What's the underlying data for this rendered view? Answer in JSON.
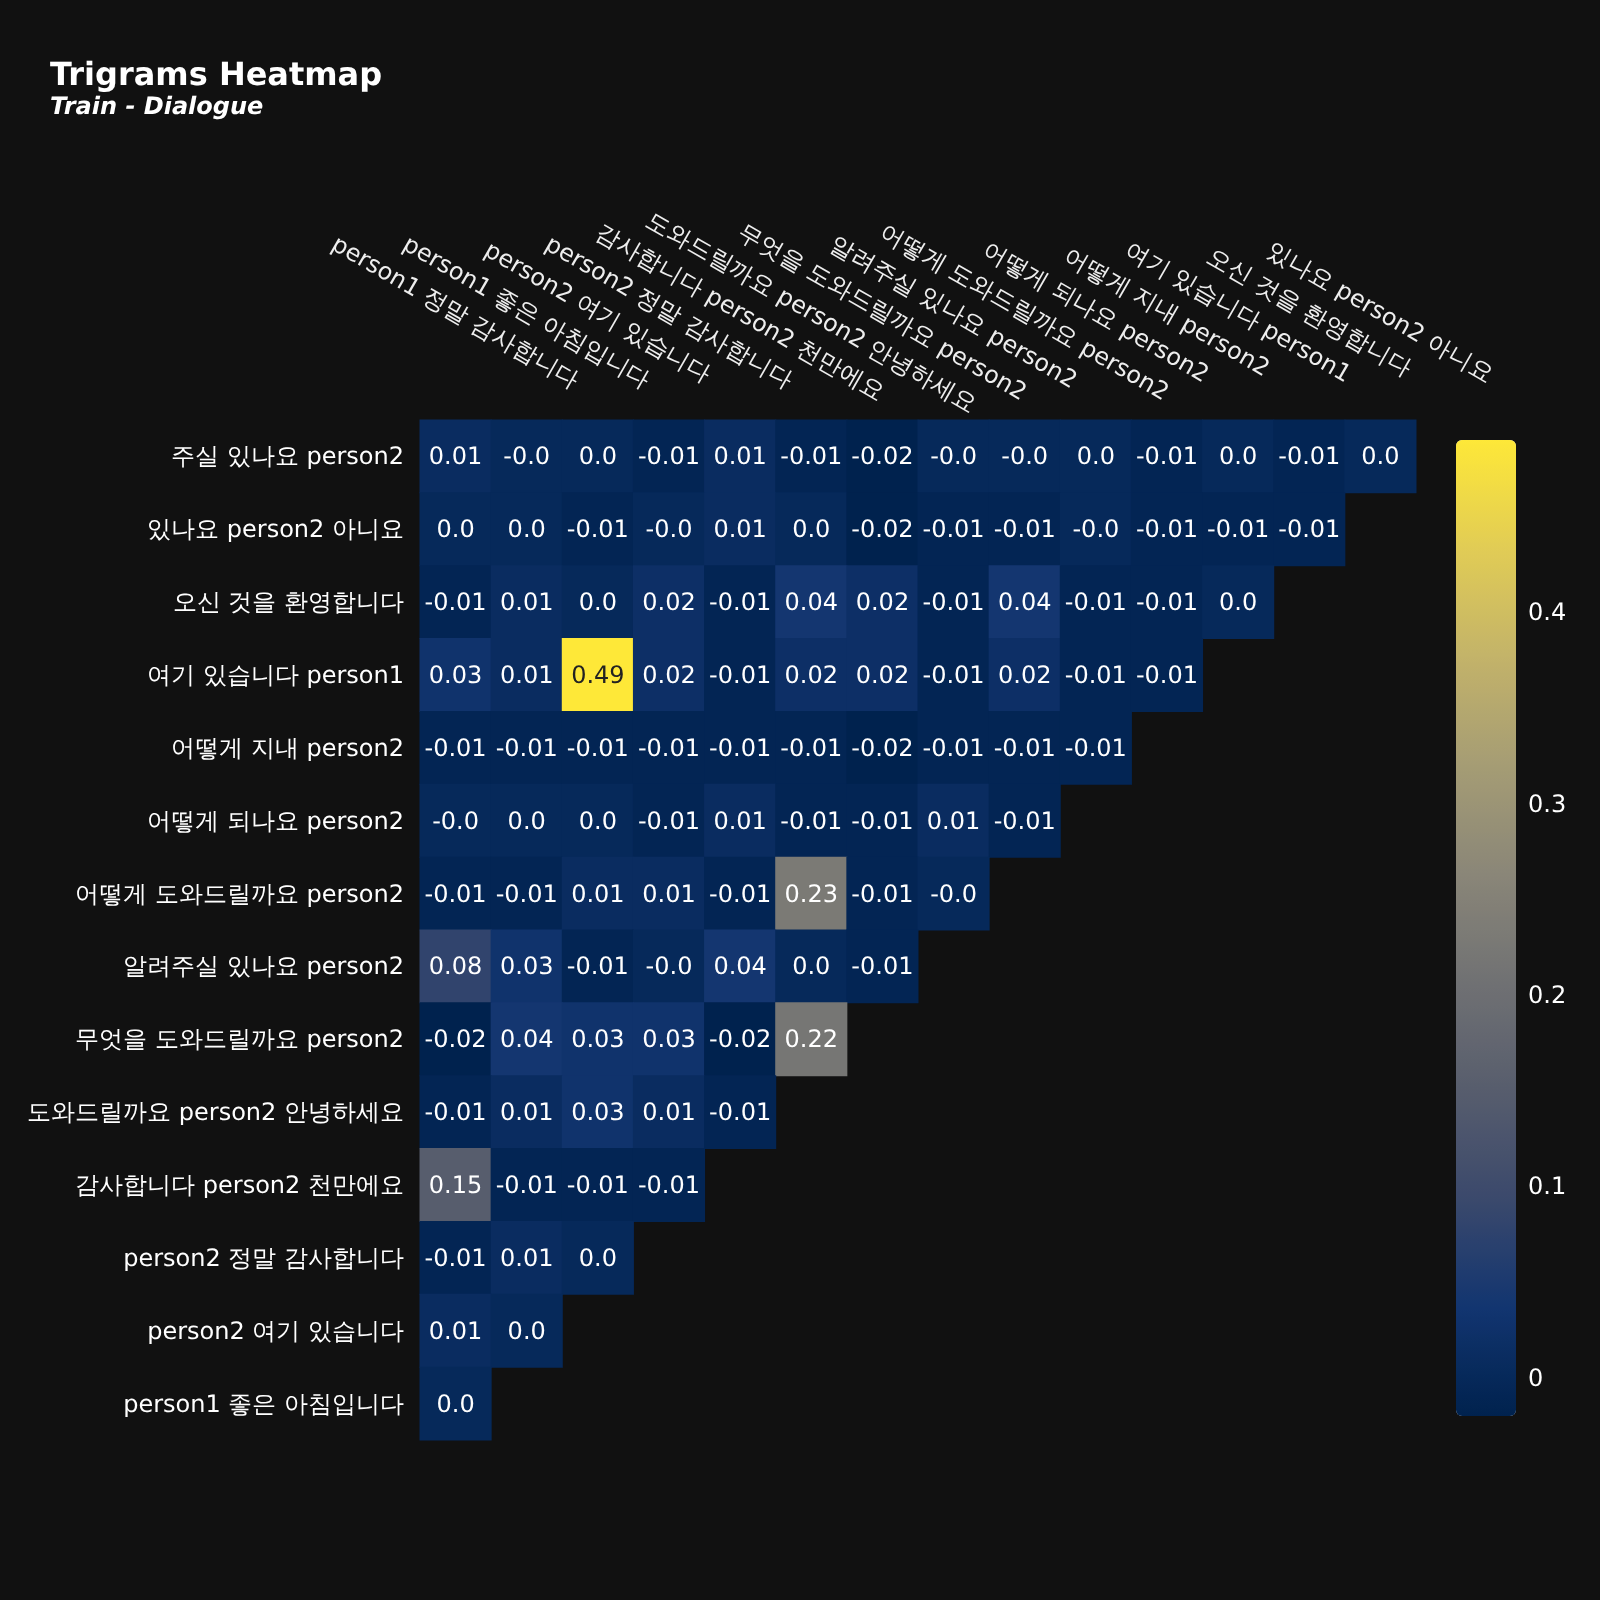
{
  "chart_data": {
    "type": "heatmap",
    "title": "Trigrams Heatmap",
    "subtitle": "Train - Dialogue",
    "categories": [
      "person1 정말 감사합니다",
      "person1 좋은 아침입니다",
      "person2 여기 있습니다",
      "person2 정말 감사합니다",
      "감사합니다 person2 천만에요",
      "도와드릴까요 person2 안녕하세요",
      "무엇을 도와드릴까요 person2",
      "알려주실 있나요 person2",
      "어떻게 도와드릴까요 person2",
      "어떻게 되나요 person2",
      "어떻게 지내 person2",
      "여기 있습니다 person1",
      "오신 것을 환영합니다",
      "있나요 person2 아니요"
    ],
    "y_categories": [
      "주실 있나요 person2",
      "있나요 person2 아니요",
      "오신 것을 환영합니다",
      "여기 있습니다 person1",
      "어떻게 지내 person2",
      "어떻게 되나요 person2",
      "어떻게 도와드릴까요 person2",
      "알려주실 있나요 person2",
      "무엇을 도와드릴까요 person2",
      "도와드릴까요 person2 안녕하세요",
      "감사합니다 person2 천만에요",
      "person2 정말 감사합니다",
      "person2 여기 있습니다",
      "person1 좋은 아침입니다"
    ],
    "cells": [
      [
        0.01,
        0,
        0,
        -0.01,
        0.01,
        -0.01,
        -0.02,
        0,
        0,
        0,
        -0.01,
        0,
        -0.01,
        0
      ],
      [
        0,
        0,
        -0.01,
        0,
        0.01,
        0,
        -0.02,
        -0.01,
        -0.01,
        0,
        -0.01,
        -0.01,
        -0.01,
        null
      ],
      [
        -0.01,
        0.01,
        0,
        0.02,
        -0.01,
        0.04,
        0.02,
        -0.01,
        0.04,
        -0.01,
        -0.01,
        0,
        null,
        null
      ],
      [
        0.03,
        0.01,
        0.49,
        0.02,
        -0.01,
        0.02,
        0.02,
        -0.01,
        0.02,
        -0.01,
        -0.01,
        null,
        null,
        null
      ],
      [
        -0.01,
        -0.01,
        -0.01,
        -0.01,
        -0.01,
        -0.01,
        -0.02,
        -0.01,
        -0.01,
        -0.01,
        null,
        null,
        null,
        null
      ],
      [
        0,
        0,
        0,
        -0.01,
        0.01,
        -0.01,
        -0.01,
        0.01,
        -0.01,
        null,
        null,
        null,
        null,
        null
      ],
      [
        -0.01,
        -0.01,
        0.01,
        0.01,
        -0.01,
        0.23,
        -0.01,
        0,
        null,
        null,
        null,
        null,
        null,
        null
      ],
      [
        0.08,
        0.03,
        -0.01,
        0,
        0.04,
        0,
        -0.01,
        null,
        null,
        null,
        null,
        null,
        null,
        null
      ],
      [
        -0.02,
        0.04,
        0.03,
        0.03,
        -0.02,
        0.22,
        null,
        null,
        null,
        null,
        null,
        null,
        null,
        null
      ],
      [
        -0.01,
        0.01,
        0.03,
        0.01,
        -0.01,
        null,
        null,
        null,
        null,
        null,
        null,
        null,
        null,
        null
      ],
      [
        0.15,
        -0.01,
        -0.01,
        -0.01,
        null,
        null,
        null,
        null,
        null,
        null,
        null,
        null,
        null,
        null
      ],
      [
        -0.01,
        0.01,
        0,
        null,
        null,
        null,
        null,
        null,
        null,
        null,
        null,
        null,
        null,
        null
      ],
      [
        0.01,
        0,
        null,
        null,
        null,
        null,
        null,
        null,
        null,
        null,
        null,
        null,
        null,
        null
      ],
      [
        0,
        null,
        null,
        null,
        null,
        null,
        null,
        null,
        null,
        null,
        null,
        null,
        null,
        null
      ]
    ],
    "cell_labels": [
      [
        "0.01",
        "-0.0",
        "0.0",
        "-0.01",
        "0.01",
        "-0.01",
        "-0.02",
        "-0.0",
        "-0.0",
        "0.0",
        "-0.01",
        "0.0",
        "-0.01",
        "0.0"
      ],
      [
        "0.0",
        "0.0",
        "-0.01",
        "-0.0",
        "0.01",
        "0.0",
        "-0.02",
        "-0.01",
        "-0.01",
        "-0.0",
        "-0.01",
        "-0.01",
        "-0.01",
        null
      ],
      [
        "-0.01",
        "0.01",
        "0.0",
        "0.02",
        "-0.01",
        "0.04",
        "0.02",
        "-0.01",
        "0.04",
        "-0.01",
        "-0.01",
        "0.0",
        null,
        null
      ],
      [
        "0.03",
        "0.01",
        "0.49",
        "0.02",
        "-0.01",
        "0.02",
        "0.02",
        "-0.01",
        "0.02",
        "-0.01",
        "-0.01",
        null,
        null,
        null
      ],
      [
        "-0.01",
        "-0.01",
        "-0.01",
        "-0.01",
        "-0.01",
        "-0.01",
        "-0.02",
        "-0.01",
        "-0.01",
        "-0.01",
        null,
        null,
        null,
        null
      ],
      [
        "-0.0",
        "0.0",
        "0.0",
        "-0.01",
        "0.01",
        "-0.01",
        "-0.01",
        "0.01",
        "-0.01",
        null,
        null,
        null,
        null,
        null
      ],
      [
        "-0.01",
        "-0.01",
        "0.01",
        "0.01",
        "-0.01",
        "0.23",
        "-0.01",
        "-0.0",
        null,
        null,
        null,
        null,
        null,
        null
      ],
      [
        "0.08",
        "0.03",
        "-0.01",
        "-0.0",
        "0.04",
        "0.0",
        "-0.01",
        null,
        null,
        null,
        null,
        null,
        null,
        null
      ],
      [
        "-0.02",
        "0.04",
        "0.03",
        "0.03",
        "-0.02",
        "0.22",
        null,
        null,
        null,
        null,
        null,
        null,
        null,
        null
      ],
      [
        "-0.01",
        "0.01",
        "0.03",
        "0.01",
        "-0.01",
        null,
        null,
        null,
        null,
        null,
        null,
        null,
        null,
        null
      ],
      [
        "0.15",
        "-0.01",
        "-0.01",
        "-0.01",
        null,
        null,
        null,
        null,
        null,
        null,
        null,
        null,
        null,
        null
      ],
      [
        "-0.01",
        "0.01",
        "0.0",
        null,
        null,
        null,
        null,
        null,
        null,
        null,
        null,
        null,
        null,
        null
      ],
      [
        "0.01",
        "0.0",
        null,
        null,
        null,
        null,
        null,
        null,
        null,
        null,
        null,
        null,
        null,
        null
      ],
      [
        "0.0",
        null,
        null,
        null,
        null,
        null,
        null,
        null,
        null,
        null,
        null,
        null,
        null,
        null
      ]
    ],
    "clim": [
      -0.02,
      0.49
    ],
    "cticks": [
      0,
      0.1,
      0.2,
      0.3,
      0.4
    ]
  }
}
